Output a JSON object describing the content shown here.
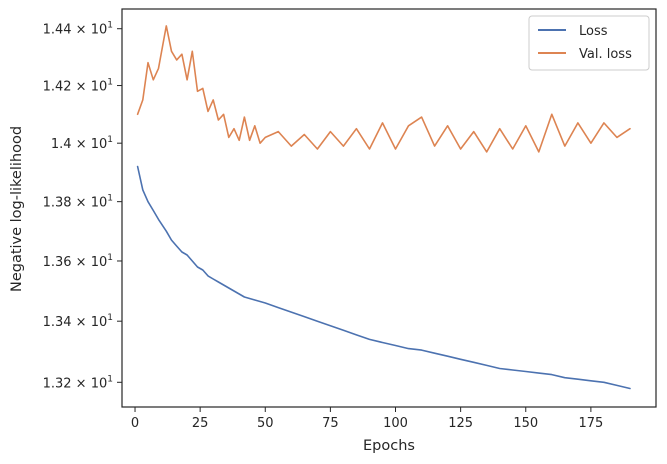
{
  "chart_data": {
    "type": "line",
    "xlabel": "Epochs",
    "ylabel": "Negative log-likelihood",
    "xlim": [
      -5,
      200
    ],
    "ylim": [
      13.12,
      14.47
    ],
    "y_scale": "log",
    "x_ticks": [
      0,
      25,
      50,
      75,
      100,
      125,
      150,
      175
    ],
    "y_ticks": [
      {
        "value": 13.2,
        "mantissa": "1.32"
      },
      {
        "value": 13.4,
        "mantissa": "1.34"
      },
      {
        "value": 13.6,
        "mantissa": "1.36"
      },
      {
        "value": 13.8,
        "mantissa": "1.38"
      },
      {
        "value": 14.0,
        "mantissa": "1.4"
      },
      {
        "value": 14.2,
        "mantissa": "1.42"
      },
      {
        "value": 14.4,
        "mantissa": "1.44"
      }
    ],
    "y_tick_base": "10",
    "y_tick_exponent": "1",
    "grid": false,
    "legend_position": "top-right",
    "colors": {
      "loss": "#4c72b0",
      "val_loss": "#dd8452"
    },
    "x": [
      1,
      3,
      5,
      7,
      9,
      12,
      14,
      16,
      18,
      20,
      22,
      24,
      26,
      28,
      30,
      32,
      34,
      36,
      38,
      40,
      42,
      44,
      46,
      48,
      50,
      55,
      60,
      65,
      70,
      75,
      80,
      85,
      90,
      95,
      100,
      105,
      110,
      115,
      120,
      125,
      130,
      135,
      140,
      145,
      150,
      155,
      160,
      165,
      170,
      175,
      180,
      185,
      190
    ],
    "series": [
      {
        "name": "Loss",
        "values": [
          13.92,
          13.84,
          13.8,
          13.77,
          13.74,
          13.7,
          13.67,
          13.65,
          13.63,
          13.62,
          13.6,
          13.58,
          13.57,
          13.55,
          13.54,
          13.53,
          13.52,
          13.51,
          13.5,
          13.49,
          13.48,
          13.475,
          13.47,
          13.465,
          13.46,
          13.445,
          13.43,
          13.415,
          13.4,
          13.385,
          13.37,
          13.355,
          13.34,
          13.33,
          13.32,
          13.31,
          13.305,
          13.295,
          13.285,
          13.275,
          13.265,
          13.255,
          13.245,
          13.24,
          13.235,
          13.23,
          13.225,
          13.215,
          13.21,
          13.205,
          13.2,
          13.19,
          13.18
        ]
      },
      {
        "name": "Val. loss",
        "values": [
          14.1,
          14.15,
          14.28,
          14.22,
          14.26,
          14.41,
          14.32,
          14.29,
          14.31,
          14.22,
          14.32,
          14.18,
          14.19,
          14.11,
          14.15,
          14.08,
          14.1,
          14.02,
          14.05,
          14.01,
          14.09,
          14.01,
          14.06,
          14.0,
          14.02,
          14.04,
          13.99,
          14.03,
          13.98,
          14.04,
          13.99,
          14.05,
          13.98,
          14.07,
          13.98,
          14.06,
          14.09,
          13.99,
          14.06,
          13.98,
          14.04,
          13.97,
          14.05,
          13.98,
          14.06,
          13.97,
          14.1,
          13.99,
          14.07,
          14.0,
          14.07,
          14.02,
          14.05
        ]
      }
    ]
  }
}
